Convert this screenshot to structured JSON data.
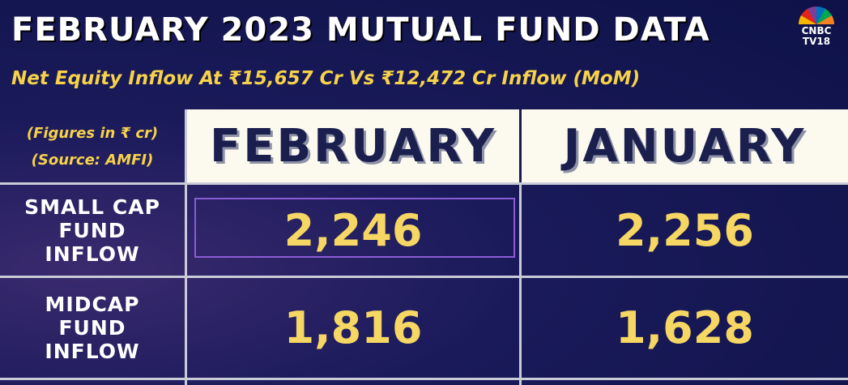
{
  "header": {
    "title": "FEBRUARY 2023 MUTUAL FUND DATA",
    "subtitle": "Net Equity Inflow At ₹15,657 Cr Vs ₹12,472 Cr Inflow (MoM)",
    "logo": [
      "CNBC",
      "TV18"
    ]
  },
  "table": {
    "note": [
      "(Figures in ₹ cr)",
      "(Source: AMFI)"
    ],
    "columns": [
      "FEBRUARY",
      "JANUARY"
    ],
    "rows": [
      {
        "label": [
          "SMALL CAP",
          "FUND",
          "INFLOW"
        ],
        "values": [
          "2,246",
          "2,256"
        ]
      },
      {
        "label": [
          "MIDCAP",
          "FUND",
          "INFLOW"
        ],
        "values": [
          "1,816",
          "1,628"
        ]
      }
    ]
  }
}
